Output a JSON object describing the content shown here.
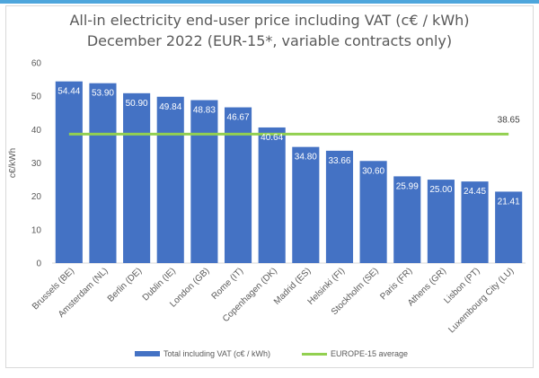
{
  "title_line1": "All-in electricity end-user price including VAT (c€ / kWh)",
  "title_line2": "December 2022 (EUR-15*, variable contracts only)",
  "chart_data": {
    "type": "bar",
    "title": "All-in electricity end-user price including VAT (c€ / kWh)",
    "subtitle": "December 2022 (EUR-15*, variable contracts only)",
    "ylabel": "c€/kWh",
    "xlabel": "",
    "ylim": [
      0,
      60
    ],
    "yticks": [
      0,
      10,
      20,
      30,
      40,
      50,
      60
    ],
    "grid": false,
    "legend": "bottom",
    "categories": [
      "Brussels (BE)",
      "Amsterdam (NL)",
      "Berlin (DE)",
      "Dublin (IE)",
      "London (GB)",
      "Rome (IT)",
      "Copenhagen (DK)",
      "Madrid (ES)",
      "Helsinki (FI)",
      "Stockholm (SE)",
      "Paris (FR)",
      "Athens (GR)",
      "Lisbon (PT)",
      "Luxembourg City (LU)"
    ],
    "series": [
      {
        "name": "Total including VAT (c€ / kWh)",
        "type": "bar",
        "color": "#4472c4",
        "values": [
          54.44,
          53.9,
          50.9,
          49.84,
          48.83,
          46.67,
          40.64,
          34.8,
          33.66,
          30.6,
          25.99,
          25.0,
          24.45,
          21.41
        ]
      },
      {
        "name": "EUROPE-15 average",
        "type": "line",
        "color": "#92d050",
        "value": 38.65
      }
    ],
    "value_labels": [
      "54.44",
      "53.90",
      "50.90",
      "49.84",
      "48.83",
      "46.67",
      "40.64",
      "34.80",
      "33.66",
      "30.60",
      "25.99",
      "25.00",
      "24.45",
      "21.41"
    ],
    "average_label": "38.65"
  }
}
